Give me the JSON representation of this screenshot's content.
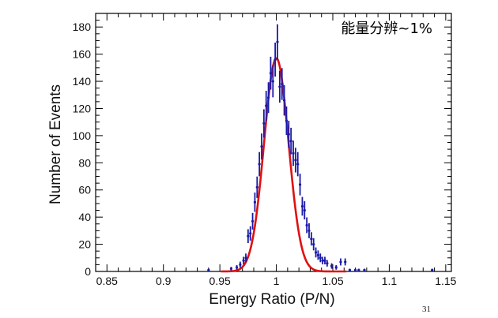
{
  "chart_data": {
    "type": "scatter",
    "xlabel": "Energy Ratio (P/N)",
    "ylabel": "Number of Events",
    "annotation": "能量分辨~1%",
    "xlim": [
      0.84,
      1.155
    ],
    "ylim": [
      0,
      190
    ],
    "x_ticks": [
      "0.85",
      "0.9",
      "0.95",
      "1",
      "1.05",
      "1.1",
      "1.15"
    ],
    "x_tick_values": [
      0.85,
      0.9,
      0.95,
      1.0,
      1.05,
      1.1,
      1.15
    ],
    "y_ticks": [
      "0",
      "20",
      "40",
      "60",
      "80",
      "100",
      "120",
      "140",
      "160",
      "180"
    ],
    "y_tick_values": [
      0,
      20,
      40,
      60,
      80,
      100,
      120,
      140,
      160,
      180
    ],
    "grid": false,
    "legend": "none",
    "series": [
      {
        "kind": "points",
        "color": "#1a1aa8",
        "x": [
          0.94,
          0.96,
          0.965,
          0.968,
          0.971,
          0.973,
          0.975,
          0.977,
          0.979,
          0.981,
          0.983,
          0.985,
          0.987,
          0.989,
          0.991,
          0.993,
          0.995,
          0.997,
          0.999,
          1.001,
          1.003,
          1.005,
          1.007,
          1.009,
          1.011,
          1.013,
          1.015,
          1.017,
          1.019,
          1.021,
          1.023,
          1.025,
          1.027,
          1.029,
          1.031,
          1.033,
          1.035,
          1.037,
          1.039,
          1.041,
          1.043,
          1.045,
          1.049,
          1.053,
          1.057,
          1.061,
          1.065,
          1.07,
          1.073,
          1.078,
          1.138
        ],
        "y": [
          1,
          2,
          3,
          5,
          8,
          10,
          26,
          28,
          37,
          51,
          62,
          79,
          92,
          109,
          122,
          128,
          146,
          140,
          156,
          169,
          136,
          138,
          126,
          111,
          101,
          96,
          87,
          82,
          79,
          64,
          48,
          45,
          34,
          30,
          24,
          20,
          14,
          12,
          10,
          8,
          8,
          6,
          4,
          3,
          7,
          7,
          1,
          1,
          1,
          1,
          1
        ],
        "err": [
          1,
          1.4,
          1.7,
          2.2,
          2.8,
          3.2,
          5.1,
          5.3,
          6.1,
          7.1,
          7.9,
          8.9,
          9.6,
          10.4,
          11,
          11.3,
          12.1,
          11.8,
          12.5,
          13,
          11.7,
          11.7,
          11.2,
          10.5,
          10,
          9.8,
          9.3,
          9.1,
          8.9,
          8,
          6.9,
          6.7,
          5.8,
          5.5,
          4.9,
          4.5,
          3.7,
          3.5,
          3.2,
          2.8,
          2.8,
          2.4,
          2,
          1.7,
          2.6,
          2.6,
          1,
          1,
          1,
          1,
          1
        ]
      },
      {
        "kind": "fit-curve",
        "color": "#e01010",
        "mean": 1.0,
        "sigma": 0.0108,
        "amplitude": 157,
        "range": [
          0.951,
          1.062
        ]
      }
    ]
  },
  "footer": {
    "slide_number": "31"
  }
}
